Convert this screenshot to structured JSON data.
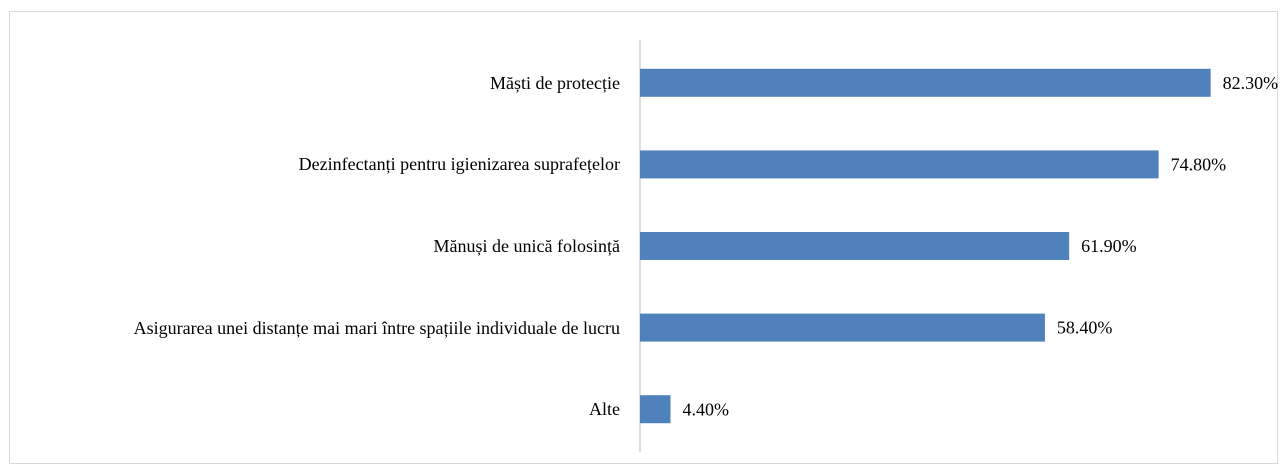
{
  "chart_data": {
    "type": "barh",
    "categories": [
      "Măști de protecție",
      "Dezinfectanți pentru igienizarea suprafețelor",
      "Mănuși de unică folosință",
      "Asigurarea unei distanțe mai mari între spațiile individuale de lucru",
      "Alte"
    ],
    "values": [
      82.3,
      74.8,
      61.9,
      58.4,
      4.4
    ],
    "value_labels": [
      "82.30%",
      "74.80%",
      "61.90%",
      "58.40%",
      "4.40%"
    ],
    "color": "#4f81bd",
    "xlim": [
      0,
      90
    ]
  }
}
